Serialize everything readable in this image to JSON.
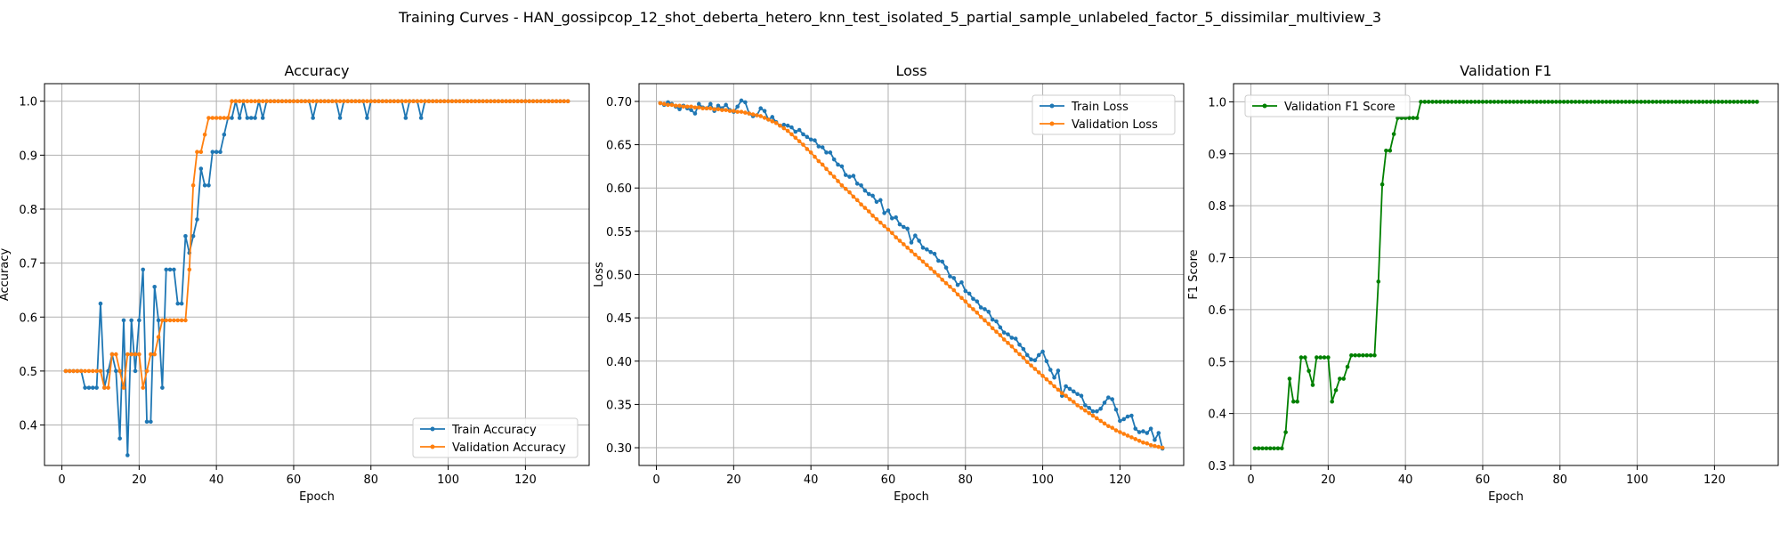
{
  "figure": {
    "suptitle": "Training Curves - HAN_gossipcop_12_shot_deberta_hetero_knn_test_isolated_5_partial_sample_unlabeled_factor_5_dissimilar_multiview_3"
  },
  "colors": {
    "blue": "#1f77b4",
    "orange": "#ff7f0e",
    "green": "#008000",
    "grid": "#b0b0b0"
  },
  "chart_data": [
    {
      "type": "line",
      "title": "Accuracy",
      "xlabel": "Epoch",
      "ylabel": "Accuracy",
      "xlim": [
        -4.5,
        136.5
      ],
      "ylim": [
        0.325,
        1.0325
      ],
      "xticks": [
        0,
        20,
        40,
        60,
        80,
        100,
        120
      ],
      "yticks": [
        0.4,
        0.5,
        0.6,
        0.7,
        0.8,
        0.9,
        1.0
      ],
      "ytick_labels": [
        "0.4",
        "0.5",
        "0.6",
        "0.7",
        "0.8",
        "0.9",
        "1.0"
      ],
      "grid": true,
      "legend_position": "lower-right",
      "x_start": 1,
      "series": [
        {
          "name": "Train Accuracy",
          "color": "#1f77b4",
          "values": [
            0.5,
            0.5,
            0.5,
            0.5,
            0.5,
            0.469,
            0.469,
            0.469,
            0.469,
            0.625,
            0.469,
            0.5,
            0.531,
            0.5,
            0.375,
            0.594,
            0.344,
            0.594,
            0.5,
            0.594,
            0.688,
            0.406,
            0.406,
            0.656,
            0.594,
            0.469,
            0.688,
            0.688,
            0.688,
            0.625,
            0.625,
            0.75,
            0.719,
            0.75,
            0.781,
            0.875,
            0.844,
            0.844,
            0.906,
            0.906,
            0.906,
            0.938,
            0.969,
            0.969,
            1.0,
            0.969,
            1.0,
            0.969,
            0.969,
            0.969,
            1.0,
            0.969,
            1.0,
            1.0,
            1.0,
            1.0,
            1.0,
            1.0,
            1.0,
            1.0,
            1.0,
            1.0,
            1.0,
            1.0,
            0.969,
            1.0,
            1.0,
            1.0,
            1.0,
            1.0,
            1.0,
            0.969,
            1.0,
            1.0,
            1.0,
            1.0,
            1.0,
            1.0,
            0.969,
            1.0,
            1.0,
            1.0,
            1.0,
            1.0,
            1.0,
            1.0,
            1.0,
            1.0,
            0.969,
            1.0,
            1.0,
            1.0,
            0.969,
            1.0,
            1.0,
            1.0,
            1.0,
            1.0,
            1.0,
            1.0,
            1.0,
            1.0,
            1.0,
            1.0,
            1.0,
            1.0,
            1.0,
            1.0,
            1.0,
            1.0,
            1.0,
            1.0,
            1.0,
            1.0,
            1.0,
            1.0,
            1.0,
            1.0,
            1.0,
            1.0,
            1.0,
            1.0,
            1.0,
            1.0,
            1.0,
            1.0,
            1.0,
            1.0,
            1.0,
            1.0,
            1.0
          ]
        },
        {
          "name": "Validation Accuracy",
          "color": "#ff7f0e",
          "values": [
            0.5,
            0.5,
            0.5,
            0.5,
            0.5,
            0.5,
            0.5,
            0.5,
            0.5,
            0.5,
            0.469,
            0.469,
            0.531,
            0.531,
            0.5,
            0.469,
            0.531,
            0.531,
            0.531,
            0.531,
            0.469,
            0.5,
            0.531,
            0.531,
            0.563,
            0.594,
            0.594,
            0.594,
            0.594,
            0.594,
            0.594,
            0.594,
            0.688,
            0.844,
            0.906,
            0.906,
            0.938,
            0.969,
            0.969,
            0.969,
            0.969,
            0.969,
            0.969,
            1.0,
            1.0,
            1.0,
            1.0,
            1.0,
            1.0,
            1.0,
            1.0,
            1.0,
            1.0,
            1.0,
            1.0,
            1.0,
            1.0,
            1.0,
            1.0,
            1.0,
            1.0,
            1.0,
            1.0,
            1.0,
            1.0,
            1.0,
            1.0,
            1.0,
            1.0,
            1.0,
            1.0,
            1.0,
            1.0,
            1.0,
            1.0,
            1.0,
            1.0,
            1.0,
            1.0,
            1.0,
            1.0,
            1.0,
            1.0,
            1.0,
            1.0,
            1.0,
            1.0,
            1.0,
            1.0,
            1.0,
            1.0,
            1.0,
            1.0,
            1.0,
            1.0,
            1.0,
            1.0,
            1.0,
            1.0,
            1.0,
            1.0,
            1.0,
            1.0,
            1.0,
            1.0,
            1.0,
            1.0,
            1.0,
            1.0,
            1.0,
            1.0,
            1.0,
            1.0,
            1.0,
            1.0,
            1.0,
            1.0,
            1.0,
            1.0,
            1.0,
            1.0,
            1.0,
            1.0,
            1.0,
            1.0,
            1.0,
            1.0,
            1.0,
            1.0,
            1.0,
            1.0
          ]
        }
      ]
    },
    {
      "type": "line",
      "title": "Loss",
      "xlabel": "Epoch",
      "ylabel": "Loss",
      "xlim": [
        -4.5,
        136.5
      ],
      "ylim": [
        0.2795,
        0.7205
      ],
      "xticks": [
        0,
        20,
        40,
        60,
        80,
        100,
        120
      ],
      "yticks": [
        0.3,
        0.35,
        0.4,
        0.45,
        0.5,
        0.55,
        0.6,
        0.65,
        0.7
      ],
      "ytick_labels": [
        "0.30",
        "0.35",
        "0.40",
        "0.45",
        "0.50",
        "0.55",
        "0.60",
        "0.65",
        "0.70"
      ],
      "grid": true,
      "legend_position": "upper-right",
      "x_start": 1,
      "series": [
        {
          "name": "Train Loss",
          "color": "#1f77b4",
          "values": [
            0.698,
            0.696,
            0.699,
            0.697,
            0.694,
            0.691,
            0.695,
            0.692,
            0.69,
            0.686,
            0.697,
            0.693,
            0.692,
            0.697,
            0.689,
            0.695,
            0.692,
            0.696,
            0.69,
            0.688,
            0.694,
            0.701,
            0.699,
            0.686,
            0.683,
            0.684,
            0.692,
            0.689,
            0.679,
            0.682,
            0.676,
            0.672,
            0.673,
            0.672,
            0.67,
            0.665,
            0.667,
            0.662,
            0.659,
            0.656,
            0.655,
            0.648,
            0.647,
            0.641,
            0.641,
            0.633,
            0.627,
            0.625,
            0.615,
            0.613,
            0.614,
            0.605,
            0.603,
            0.597,
            0.593,
            0.591,
            0.584,
            0.586,
            0.571,
            0.574,
            0.565,
            0.566,
            0.558,
            0.555,
            0.553,
            0.537,
            0.545,
            0.539,
            0.531,
            0.529,
            0.526,
            0.524,
            0.516,
            0.515,
            0.508,
            0.498,
            0.496,
            0.488,
            0.491,
            0.481,
            0.478,
            0.472,
            0.469,
            0.462,
            0.46,
            0.457,
            0.448,
            0.446,
            0.439,
            0.433,
            0.431,
            0.427,
            0.426,
            0.419,
            0.414,
            0.407,
            0.402,
            0.401,
            0.407,
            0.411,
            0.4,
            0.39,
            0.381,
            0.389,
            0.36,
            0.371,
            0.368,
            0.365,
            0.362,
            0.36,
            0.349,
            0.346,
            0.342,
            0.342,
            0.345,
            0.352,
            0.358,
            0.356,
            0.344,
            0.331,
            0.333,
            0.336,
            0.337,
            0.322,
            0.318,
            0.319,
            0.317,
            0.322,
            0.309,
            0.317,
            0.299
          ]
        },
        {
          "name": "Validation Loss",
          "color": "#ff7f0e",
          "values": [
            0.698,
            0.697,
            0.696,
            0.696,
            0.695,
            0.695,
            0.694,
            0.694,
            0.694,
            0.693,
            0.693,
            0.692,
            0.692,
            0.692,
            0.691,
            0.691,
            0.69,
            0.69,
            0.689,
            0.689,
            0.688,
            0.688,
            0.687,
            0.686,
            0.685,
            0.684,
            0.683,
            0.681,
            0.679,
            0.677,
            0.675,
            0.672,
            0.669,
            0.666,
            0.662,
            0.658,
            0.654,
            0.65,
            0.645,
            0.641,
            0.636,
            0.631,
            0.627,
            0.622,
            0.617,
            0.613,
            0.608,
            0.603,
            0.599,
            0.595,
            0.59,
            0.586,
            0.581,
            0.577,
            0.573,
            0.568,
            0.564,
            0.56,
            0.556,
            0.552,
            0.548,
            0.543,
            0.539,
            0.535,
            0.531,
            0.527,
            0.523,
            0.519,
            0.515,
            0.511,
            0.507,
            0.503,
            0.499,
            0.494,
            0.49,
            0.486,
            0.482,
            0.477,
            0.473,
            0.469,
            0.464,
            0.46,
            0.456,
            0.451,
            0.447,
            0.443,
            0.438,
            0.434,
            0.43,
            0.425,
            0.421,
            0.417,
            0.412,
            0.408,
            0.404,
            0.399,
            0.395,
            0.391,
            0.387,
            0.383,
            0.379,
            0.375,
            0.371,
            0.367,
            0.363,
            0.36,
            0.356,
            0.353,
            0.349,
            0.346,
            0.343,
            0.34,
            0.337,
            0.334,
            0.331,
            0.328,
            0.325,
            0.323,
            0.32,
            0.318,
            0.316,
            0.314,
            0.312,
            0.31,
            0.308,
            0.306,
            0.305,
            0.303,
            0.302,
            0.301,
            0.3
          ]
        }
      ]
    },
    {
      "type": "line",
      "title": "Validation F1",
      "xlabel": "Epoch",
      "ylabel": "F1 Score",
      "xlim": [
        -4.5,
        136.5
      ],
      "ylim": [
        0.3,
        1.035
      ],
      "xticks": [
        0,
        20,
        40,
        60,
        80,
        100,
        120
      ],
      "yticks": [
        0.3,
        0.4,
        0.5,
        0.6,
        0.7,
        0.8,
        0.9,
        1.0
      ],
      "ytick_labels": [
        "0.3",
        "0.4",
        "0.5",
        "0.6",
        "0.7",
        "0.8",
        "0.9",
        "1.0"
      ],
      "grid": true,
      "legend_position": "upper-left",
      "x_start": 1,
      "series": [
        {
          "name": "Validation F1 Score",
          "color": "#008000",
          "values": [
            0.333,
            0.333,
            0.333,
            0.333,
            0.333,
            0.333,
            0.333,
            0.333,
            0.364,
            0.467,
            0.423,
            0.423,
            0.508,
            0.508,
            0.482,
            0.455,
            0.508,
            0.508,
            0.508,
            0.508,
            0.423,
            0.445,
            0.467,
            0.467,
            0.49,
            0.512,
            0.512,
            0.512,
            0.512,
            0.512,
            0.512,
            0.512,
            0.654,
            0.841,
            0.906,
            0.906,
            0.938,
            0.969,
            0.969,
            0.969,
            0.969,
            0.969,
            0.969,
            1.0,
            1.0,
            1.0,
            1.0,
            1.0,
            1.0,
            1.0,
            1.0,
            1.0,
            1.0,
            1.0,
            1.0,
            1.0,
            1.0,
            1.0,
            1.0,
            1.0,
            1.0,
            1.0,
            1.0,
            1.0,
            1.0,
            1.0,
            1.0,
            1.0,
            1.0,
            1.0,
            1.0,
            1.0,
            1.0,
            1.0,
            1.0,
            1.0,
            1.0,
            1.0,
            1.0,
            1.0,
            1.0,
            1.0,
            1.0,
            1.0,
            1.0,
            1.0,
            1.0,
            1.0,
            1.0,
            1.0,
            1.0,
            1.0,
            1.0,
            1.0,
            1.0,
            1.0,
            1.0,
            1.0,
            1.0,
            1.0,
            1.0,
            1.0,
            1.0,
            1.0,
            1.0,
            1.0,
            1.0,
            1.0,
            1.0,
            1.0,
            1.0,
            1.0,
            1.0,
            1.0,
            1.0,
            1.0,
            1.0,
            1.0,
            1.0,
            1.0,
            1.0,
            1.0,
            1.0,
            1.0,
            1.0,
            1.0,
            1.0,
            1.0,
            1.0,
            1.0,
            1.0
          ]
        }
      ]
    }
  ]
}
